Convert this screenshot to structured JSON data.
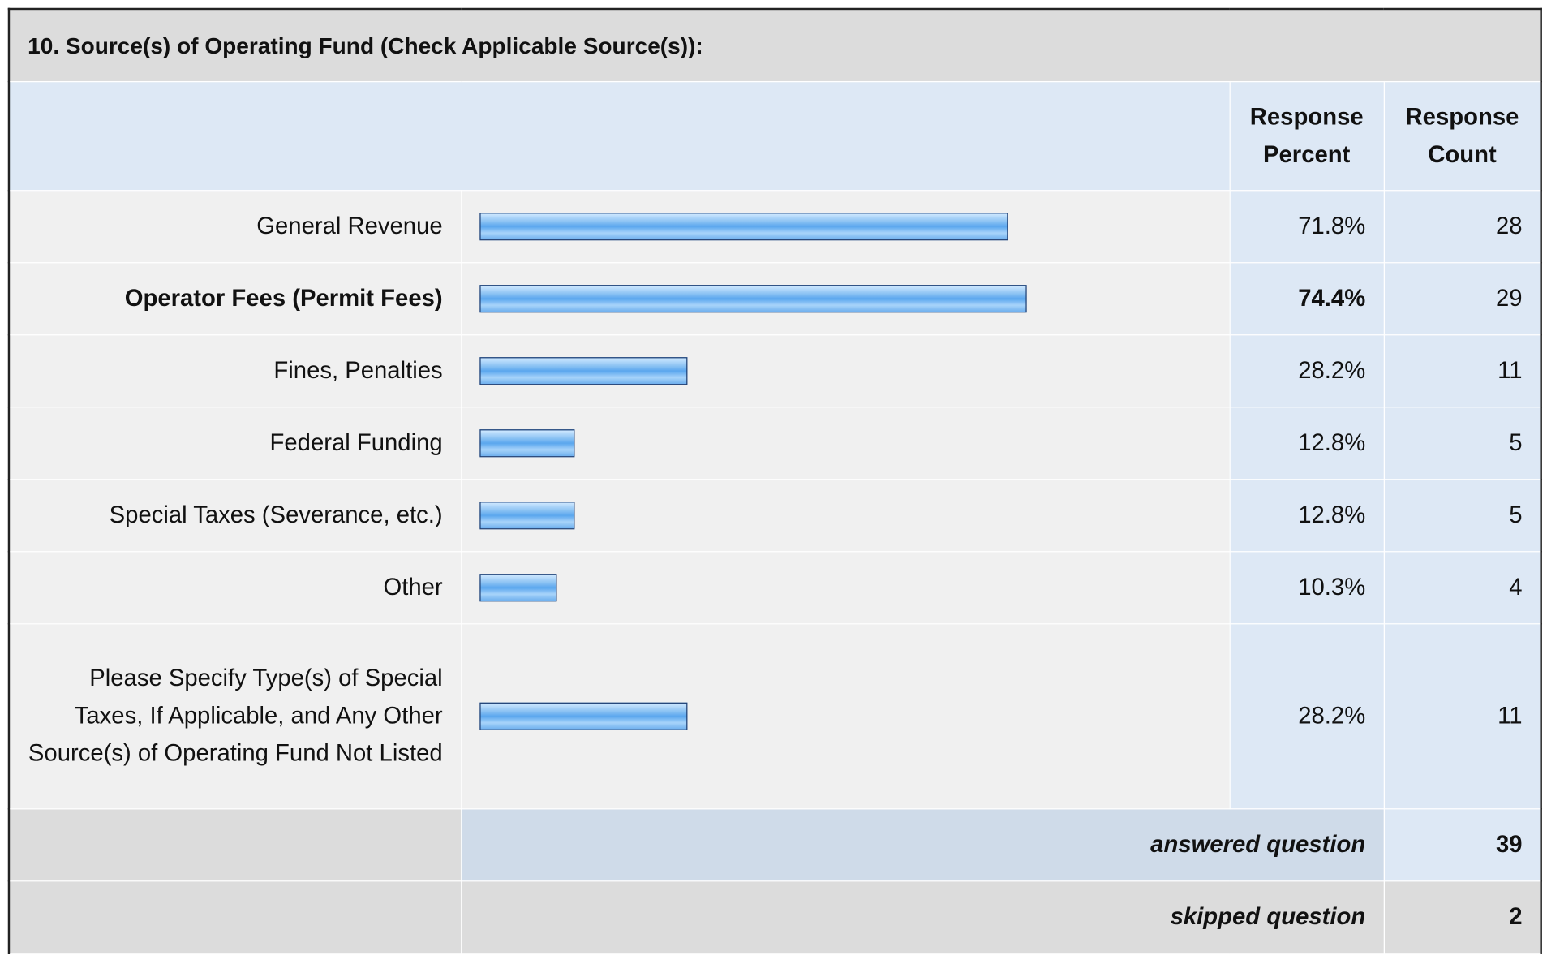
{
  "title": "10. Source(s) of Operating Fund (Check Applicable Source(s)):",
  "headers": [
    "Response Percent",
    "Response Count"
  ],
  "rows": [
    {
      "label": "General Revenue",
      "percent": 71.8,
      "percent_label": "71.8%",
      "count": 28
    },
    {
      "label": "Operator Fees (Permit Fees)",
      "percent": 74.4,
      "percent_label": "74.4%",
      "count": 29
    },
    {
      "label": "Fines, Penalties",
      "percent": 28.2,
      "percent_label": "28.2%",
      "count": 11
    },
    {
      "label": "Federal Funding",
      "percent": 12.8,
      "percent_label": "12.8%",
      "count": 5
    },
    {
      "label": "Special Taxes (Severance, etc.)",
      "percent": 12.8,
      "percent_label": "12.8%",
      "count": 5
    },
    {
      "label": "Other",
      "percent": 10.3,
      "percent_label": "10.3%",
      "count": 4
    },
    {
      "label": "Please Specify Type(s) of Special Taxes, If Applicable, and Any Other Source(s) of Operating Fund Not Listed",
      "percent": 28.2,
      "percent_label": "28.2%",
      "count": 11
    }
  ],
  "footer": [
    {
      "label": "answered question",
      "count": 39
    },
    {
      "label": "skipped question",
      "count": 2
    }
  ]
}
